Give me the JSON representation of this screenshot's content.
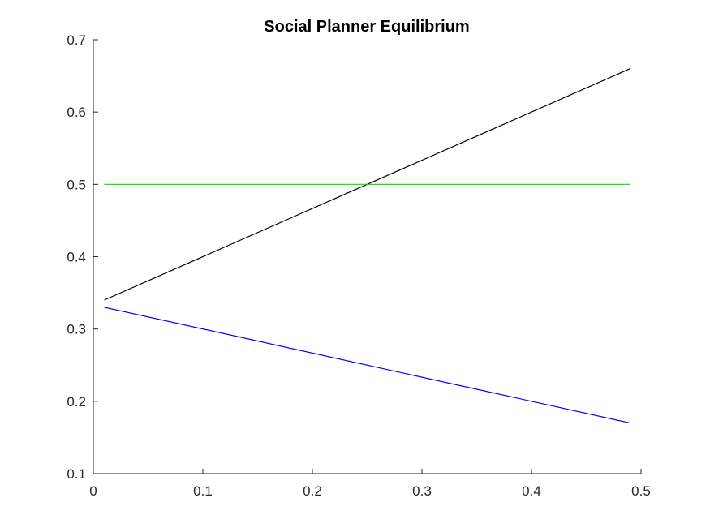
{
  "chart_data": {
    "type": "line",
    "title": "Social Planner Equilibrium",
    "xlabel": "",
    "ylabel": "",
    "xlim": [
      0,
      0.5
    ],
    "ylim": [
      0.1,
      0.7
    ],
    "x_ticks": [
      0,
      0.1,
      0.2,
      0.3,
      0.4,
      0.5
    ],
    "x_tick_labels": [
      "0",
      "0.1",
      "0.2",
      "0.3",
      "0.4",
      "0.5"
    ],
    "y_ticks": [
      0.1,
      0.2,
      0.3,
      0.4,
      0.5,
      0.6,
      0.7
    ],
    "y_tick_labels": [
      "0.1",
      "0.2",
      "0.3",
      "0.4",
      "0.5",
      "0.6",
      "0.7"
    ],
    "grid": false,
    "legend": "none",
    "series": [
      {
        "color": "#000000",
        "x": [
          0.01,
          0.49
        ],
        "y": [
          0.34,
          0.66
        ]
      },
      {
        "color": "#00e000",
        "x": [
          0.01,
          0.49
        ],
        "y": [
          0.5,
          0.5
        ]
      },
      {
        "color": "#0000ff",
        "x": [
          0.01,
          0.49
        ],
        "y": [
          0.33,
          0.17
        ]
      }
    ]
  }
}
